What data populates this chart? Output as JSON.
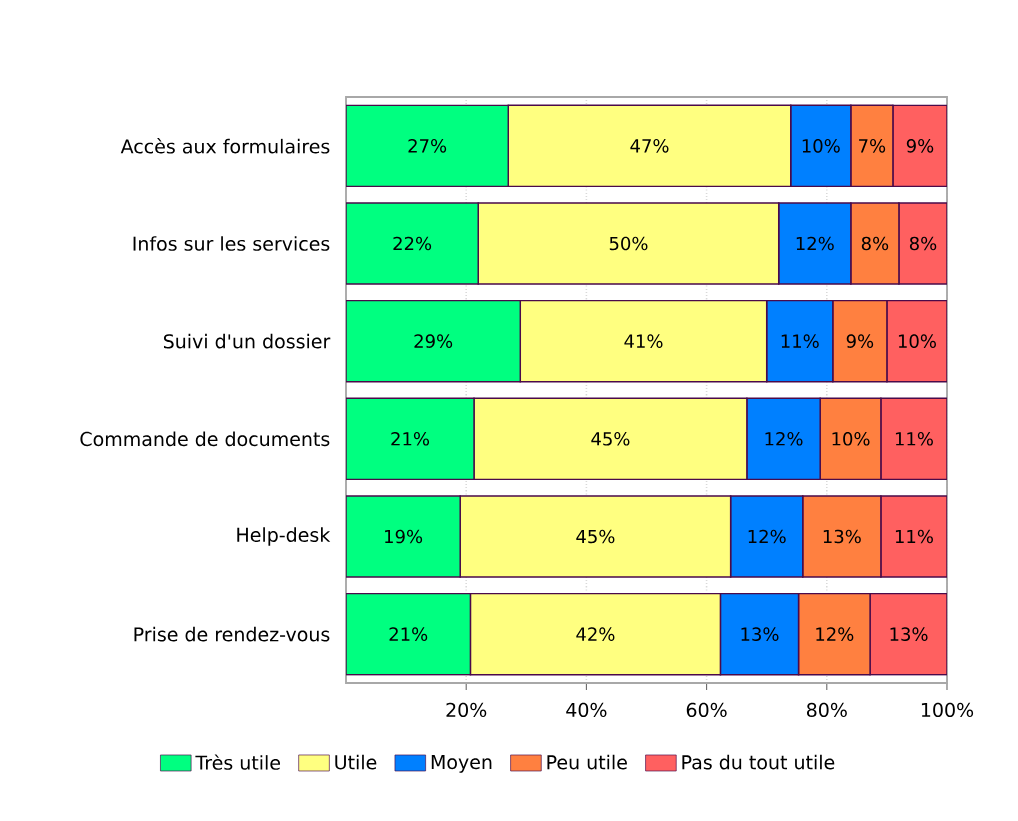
{
  "chart_data": {
    "type": "bar",
    "orientation": "horizontal",
    "stacked": true,
    "categories": [
      "Accès aux formulaires",
      "Infos sur les services",
      "Suivi d'un dossier",
      "Commande de documents",
      "Help-desk",
      "Prise de rendez-vous"
    ],
    "series": [
      {
        "name": "Très utile",
        "color": "#00ff80",
        "values": [
          27,
          22,
          29,
          21.3,
          19,
          20.7
        ],
        "value_labels": [
          "27%",
          "22%",
          "29%",
          "21%",
          "19%",
          "21%"
        ]
      },
      {
        "name": "Utile",
        "color": "#ffff80",
        "values": [
          47,
          50,
          41,
          45.4,
          45,
          41.6
        ],
        "value_labels": [
          "47%",
          "50%",
          "41%",
          "45%",
          "45%",
          "42%"
        ]
      },
      {
        "name": "Moyen",
        "color": "#0080ff",
        "values": [
          10,
          12,
          11,
          12.2,
          12,
          13
        ],
        "value_labels": [
          "10%",
          "12%",
          "11%",
          "12%",
          "12%",
          "13%"
        ]
      },
      {
        "name": "Peu utile",
        "color": "#ff8040",
        "values": [
          7,
          8,
          9,
          10.1,
          13,
          11.9
        ],
        "value_labels": [
          "7%",
          "8%",
          "9%",
          "10%",
          "13%",
          "12%"
        ]
      },
      {
        "name": "Pas du tout utile",
        "color": "#ff6060",
        "values": [
          9,
          8,
          10,
          11,
          11,
          12.8
        ],
        "value_labels": [
          "9%",
          "8%",
          "10%",
          "11%",
          "11%",
          "13%"
        ]
      }
    ],
    "xlim": [
      0,
      100
    ],
    "xticks": [
      {
        "value": 20,
        "label": "20%"
      },
      {
        "value": 40,
        "label": "40%"
      },
      {
        "value": 60,
        "label": "60%"
      },
      {
        "value": 80,
        "label": "80%"
      },
      {
        "value": 100,
        "label": "100%"
      }
    ],
    "grid": "x",
    "legend": "bottom"
  }
}
